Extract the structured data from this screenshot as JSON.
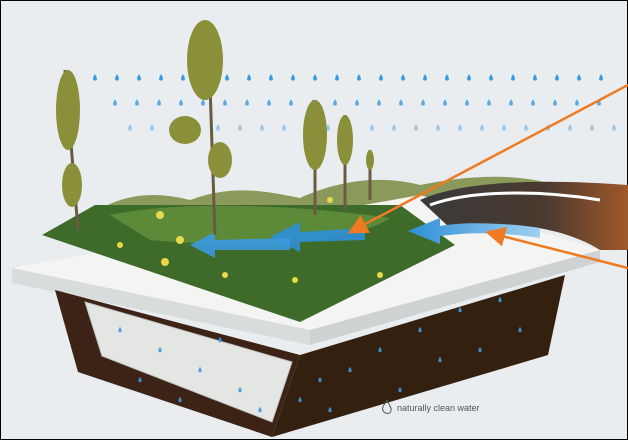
{
  "caption": "naturally clean water"
}
